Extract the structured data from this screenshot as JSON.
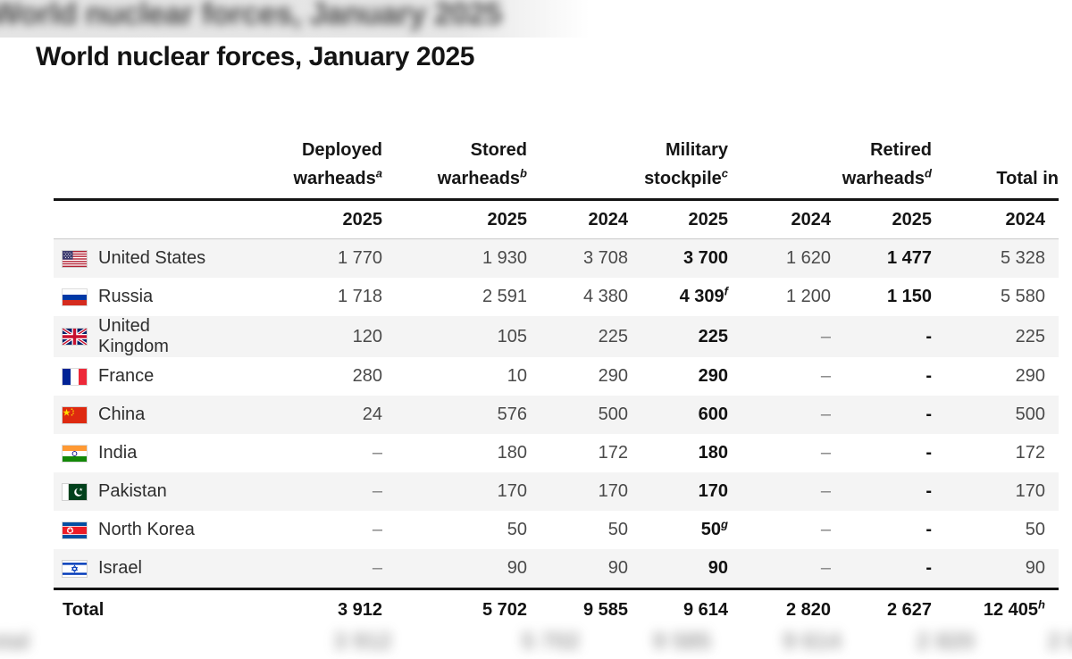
{
  "page": {
    "title": "World nuclear forces, January 2025"
  },
  "chart_data": {
    "type": "table",
    "title": "World nuclear forces, January 2025",
    "column_groups": [
      {
        "line1": "Deployed",
        "line2": "warheads",
        "footnote": "a",
        "colspan": 1
      },
      {
        "line1": "Stored",
        "line2": "warheads",
        "footnote": "b",
        "colspan": 1
      },
      {
        "line1": "Military",
        "line2": "stockpile",
        "footnote": "c",
        "colspan": 2
      },
      {
        "line1": "Retired",
        "line2": "warheads",
        "footnote": "d",
        "colspan": 2
      },
      {
        "line1": "",
        "line2": "Total in",
        "footnote": "",
        "colspan": 1
      }
    ],
    "year_columns": [
      "2025",
      "2025",
      "2024",
      "2025",
      "2024",
      "2025",
      "2024"
    ],
    "rows": [
      {
        "country": "United States",
        "flag_icon": "flag-united-states",
        "cells": [
          {
            "t": "1 770"
          },
          {
            "t": "1 930"
          },
          {
            "t": "3 708"
          },
          {
            "t": "3 700",
            "bold": true
          },
          {
            "t": "1 620"
          },
          {
            "t": "1 477",
            "bold": true
          },
          {
            "t": "5 328"
          }
        ]
      },
      {
        "country": "Russia",
        "flag_icon": "flag-russia",
        "cells": [
          {
            "t": "1 718"
          },
          {
            "t": "2 591"
          },
          {
            "t": "4 380"
          },
          {
            "t": "4 309",
            "bold": true,
            "sup": "f"
          },
          {
            "t": "1 200"
          },
          {
            "t": "1 150",
            "bold": true
          },
          {
            "t": "5 580"
          }
        ]
      },
      {
        "country": "United Kingdom",
        "flag_icon": "flag-united-kingdom",
        "cells": [
          {
            "t": "120"
          },
          {
            "t": "105"
          },
          {
            "t": "225"
          },
          {
            "t": "225",
            "bold": true
          },
          {
            "t": "–"
          },
          {
            "t": "-",
            "bold": true
          },
          {
            "t": "225"
          }
        ]
      },
      {
        "country": "France",
        "flag_icon": "flag-france",
        "cells": [
          {
            "t": "280"
          },
          {
            "t": "10"
          },
          {
            "t": "290"
          },
          {
            "t": "290",
            "bold": true
          },
          {
            "t": "–"
          },
          {
            "t": "-",
            "bold": true
          },
          {
            "t": "290"
          }
        ]
      },
      {
        "country": "China",
        "flag_icon": "flag-china",
        "cells": [
          {
            "t": "24"
          },
          {
            "t": "576"
          },
          {
            "t": "500"
          },
          {
            "t": "600",
            "bold": true
          },
          {
            "t": "–"
          },
          {
            "t": "-",
            "bold": true
          },
          {
            "t": "500"
          }
        ]
      },
      {
        "country": "India",
        "flag_icon": "flag-india",
        "cells": [
          {
            "t": "–"
          },
          {
            "t": "180"
          },
          {
            "t": "172"
          },
          {
            "t": "180",
            "bold": true
          },
          {
            "t": "–"
          },
          {
            "t": "-",
            "bold": true
          },
          {
            "t": "172"
          }
        ]
      },
      {
        "country": "Pakistan",
        "flag_icon": "flag-pakistan",
        "cells": [
          {
            "t": "–"
          },
          {
            "t": "170"
          },
          {
            "t": "170"
          },
          {
            "t": "170",
            "bold": true
          },
          {
            "t": "–"
          },
          {
            "t": "-",
            "bold": true
          },
          {
            "t": "170"
          }
        ]
      },
      {
        "country": "North Korea",
        "flag_icon": "flag-north-korea",
        "cells": [
          {
            "t": "–"
          },
          {
            "t": "50"
          },
          {
            "t": "50"
          },
          {
            "t": "50",
            "bold": true,
            "sup": "g"
          },
          {
            "t": "–"
          },
          {
            "t": "-",
            "bold": true
          },
          {
            "t": "50"
          }
        ]
      },
      {
        "country": "Israel",
        "flag_icon": "flag-israel",
        "cells": [
          {
            "t": "–"
          },
          {
            "t": "90"
          },
          {
            "t": "90"
          },
          {
            "t": "90",
            "bold": true
          },
          {
            "t": "–"
          },
          {
            "t": "-",
            "bold": true
          },
          {
            "t": "90"
          }
        ]
      }
    ],
    "total": {
      "label": "Total",
      "cells": [
        {
          "t": "3 912",
          "bold": true
        },
        {
          "t": "5 702",
          "bold": true
        },
        {
          "t": "9 585",
          "bold": true
        },
        {
          "t": "9 614",
          "bold": true
        },
        {
          "t": "2 820",
          "bold": true
        },
        {
          "t": "2 627",
          "bold": true
        },
        {
          "t": "12 405",
          "bold": true,
          "sup": "h"
        }
      ]
    }
  },
  "colors": {
    "stripe": "#f4f4f4",
    "rule": "#141414",
    "number_text": "#4a4a4a",
    "bold_number_text": "#121212",
    "muted_dash": "#7f7f7f"
  }
}
